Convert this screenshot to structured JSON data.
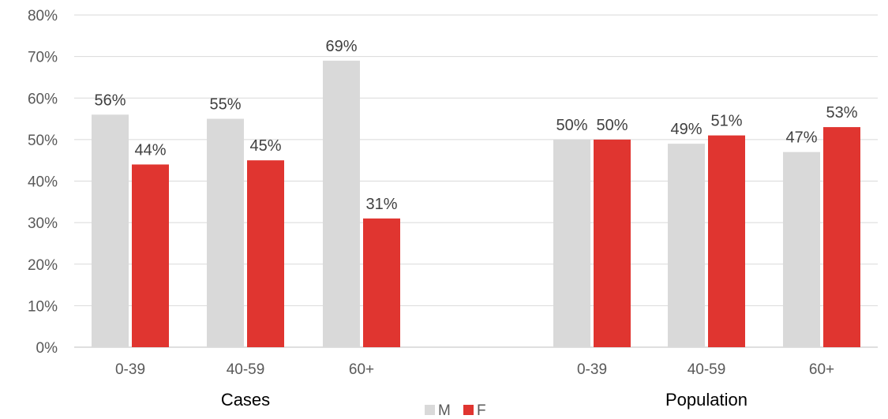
{
  "chart_data": {
    "type": "bar",
    "groups": [
      {
        "label": "Cases",
        "categories": [
          "0-39",
          "40-59",
          "60+"
        ]
      },
      {
        "label": "Population",
        "categories": [
          "0-39",
          "40-59",
          "60+"
        ]
      }
    ],
    "series": [
      {
        "name": "M",
        "color": "#d9d9d9",
        "values": [
          56,
          55,
          69,
          50,
          49,
          47
        ],
        "labels": [
          "56%",
          "55%",
          "69%",
          "50%",
          "49%",
          "47%"
        ]
      },
      {
        "name": "F",
        "color": "#e03530",
        "values": [
          44,
          45,
          31,
          50,
          51,
          53
        ],
        "labels": [
          "44%",
          "45%",
          "31%",
          "50%",
          "51%",
          "53%"
        ]
      }
    ],
    "yticks": [
      "0%",
      "10%",
      "20%",
      "30%",
      "40%",
      "50%",
      "60%",
      "70%",
      "80%"
    ],
    "ylim": [
      0,
      80
    ],
    "grid": true,
    "legend_position": "bottom"
  }
}
